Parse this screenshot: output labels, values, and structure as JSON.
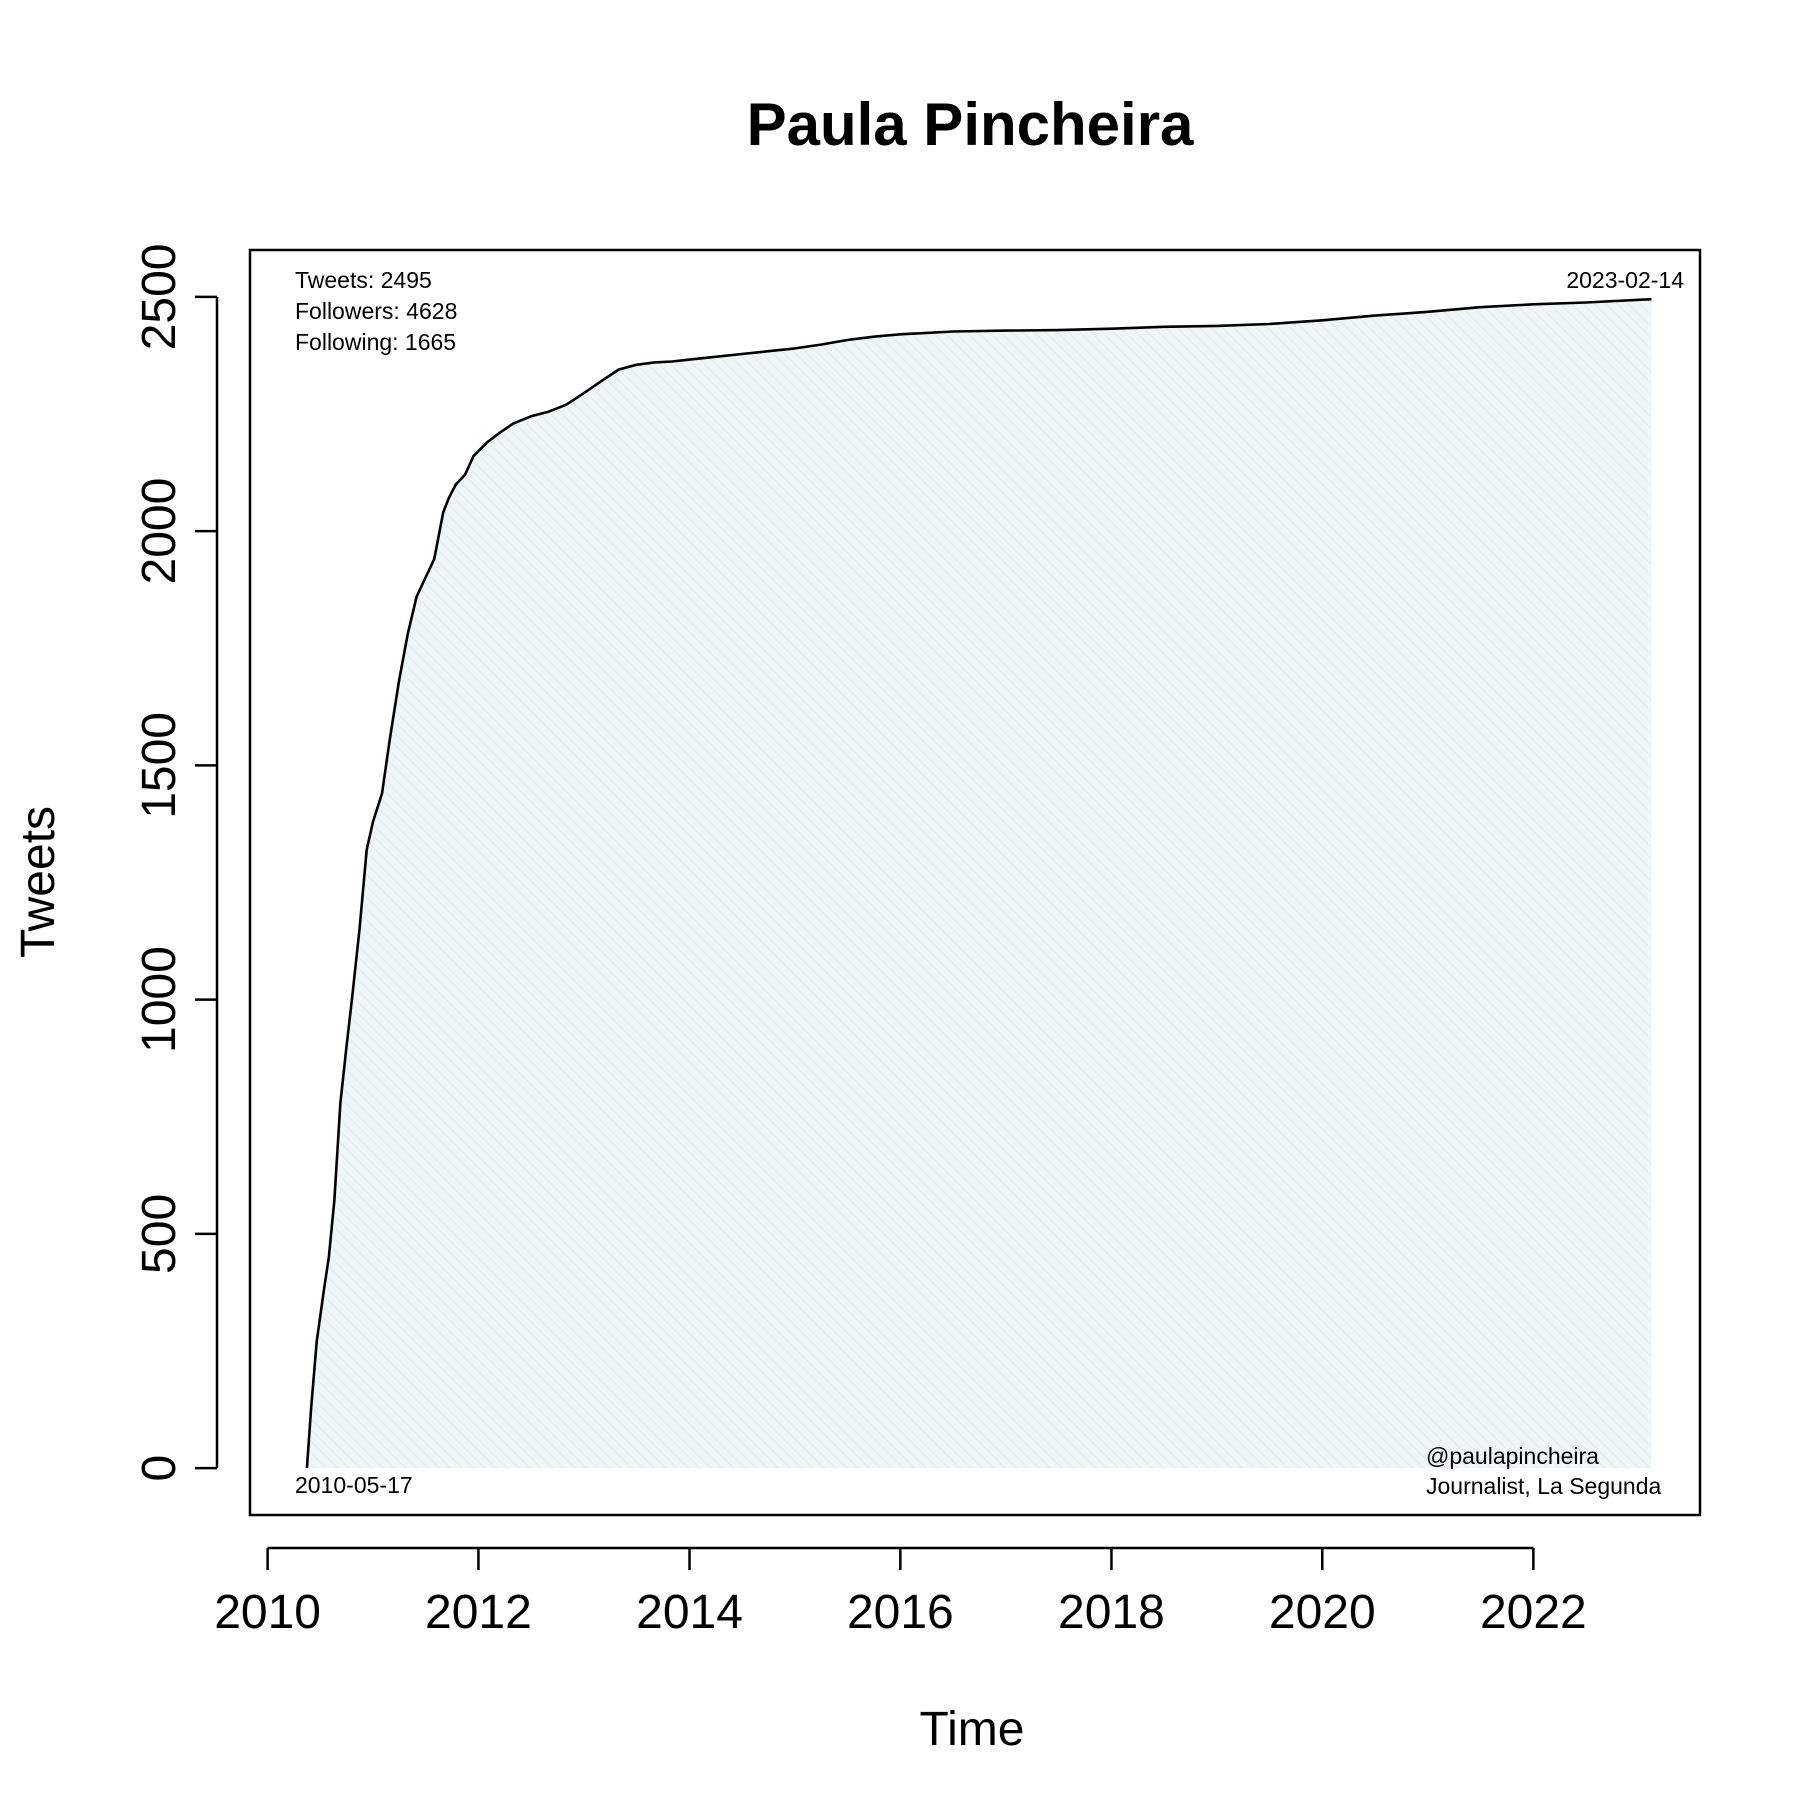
{
  "chart_data": {
    "type": "area",
    "title": "Paula Pincheira",
    "xlabel": "Time",
    "ylabel": "Tweets",
    "x_ticks": [
      "2010",
      "2012",
      "2014",
      "2016",
      "2018",
      "2020",
      "2022"
    ],
    "y_ticks": [
      "0",
      "500",
      "1000",
      "1500",
      "2000",
      "2500"
    ],
    "xlim": [
      "2009-11-01",
      "2023-08-01"
    ],
    "ylim": [
      -100,
      2600
    ],
    "grid": false,
    "fill_color": "#e6f1f3",
    "line_color": "#000000",
    "annotations": {
      "stats": [
        "Tweets: 2495",
        "Followers: 4628",
        "Following: 1665"
      ],
      "start_date": "2010-05-17",
      "end_date": "2023-02-14",
      "handle": "@paulapincheira",
      "bio": "Journalist, La Segunda"
    },
    "series": [
      {
        "x": [
          "2010-05-17",
          "2010-06-01",
          "2010-06-20",
          "2010-07-15",
          "2010-08-01",
          "2010-08-20",
          "2010-09-10",
          "2010-10-01",
          "2010-10-20",
          "2010-11-15",
          "2010-12-10",
          "2011-01-01",
          "2011-02-01",
          "2011-03-01",
          "2011-04-01",
          "2011-05-01",
          "2011-06-01",
          "2011-07-01",
          "2011-08-01",
          "2011-09-01",
          "2011-09-20",
          "2011-10-15",
          "2011-11-15",
          "2011-12-15",
          "2012-02-01",
          "2012-03-15",
          "2012-05-01",
          "2012-07-01",
          "2012-09-01",
          "2012-11-01",
          "2013-01-01",
          "2013-03-01",
          "2013-05-01",
          "2013-07-01",
          "2013-09-01",
          "2013-11-01",
          "2014-01-01",
          "2014-04-01",
          "2014-07-01",
          "2014-10-01",
          "2015-01-01",
          "2015-04-01",
          "2015-07-01",
          "2015-10-01",
          "2016-01-01",
          "2016-04-01",
          "2016-07-01",
          "2017-01-01",
          "2017-07-01",
          "2018-01-01",
          "2018-07-01",
          "2019-01-01",
          "2019-07-01",
          "2020-01-01",
          "2020-07-01",
          "2021-01-01",
          "2021-07-01",
          "2022-01-01",
          "2022-07-01",
          "2023-02-14"
        ],
        "y": [
          0,
          130,
          270,
          380,
          450,
          570,
          780,
          900,
          1000,
          1150,
          1320,
          1380,
          1440,
          1560,
          1680,
          1780,
          1860,
          1900,
          1940,
          2040,
          2070,
          2100,
          2120,
          2160,
          2190,
          2210,
          2230,
          2245,
          2255,
          2270,
          2295,
          2320,
          2345,
          2355,
          2360,
          2362,
          2366,
          2372,
          2378,
          2384,
          2390,
          2398,
          2408,
          2415,
          2420,
          2423,
          2426,
          2428,
          2429,
          2432,
          2436,
          2438,
          2442,
          2450,
          2460,
          2468,
          2478,
          2484,
          2488,
          2495
        ]
      }
    ]
  }
}
